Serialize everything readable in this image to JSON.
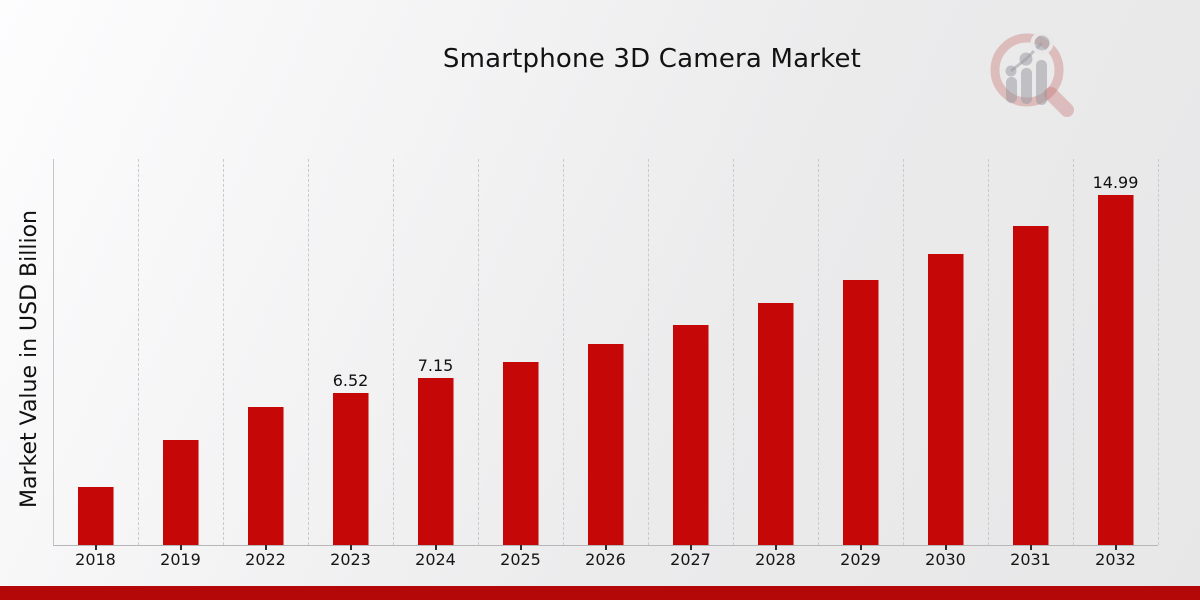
{
  "page": {
    "title": "Smartphone 3D Camera Market",
    "y_axis_title": "Market Value in USD Billion",
    "watermark_icon": "magnifier-growth-chart-logo"
  },
  "colors": {
    "bar": "#c50707",
    "bottom_stripe": "#b40707",
    "axis_line": "#b7b7b9",
    "gridline": "#cacacc",
    "text": "#131313",
    "logo_pink": "rgba(201,112,112,0.38)",
    "logo_gray": "rgba(150,150,158,0.5)"
  },
  "chart_data": {
    "type": "bar",
    "title": "Smartphone 3D Camera Market",
    "xlabel": "",
    "ylabel": "Market Value in USD Billion",
    "categories": [
      "2018",
      "2019",
      "2022",
      "2023",
      "2024",
      "2025",
      "2026",
      "2027",
      "2028",
      "2029",
      "2030",
      "2031",
      "2032"
    ],
    "values": [
      2.48,
      4.5,
      5.91,
      6.52,
      7.15,
      7.84,
      8.6,
      9.44,
      10.35,
      11.36,
      12.46,
      13.67,
      14.99
    ],
    "data_labels": [
      "",
      "",
      "",
      "6.52",
      "7.15",
      "",
      "",
      "",
      "",
      "",
      "",
      "",
      "14.99"
    ],
    "ylim": [
      0,
      16.53
    ],
    "grid": "vertical-dashed",
    "legend": "none",
    "bar_color": "#c50707"
  }
}
